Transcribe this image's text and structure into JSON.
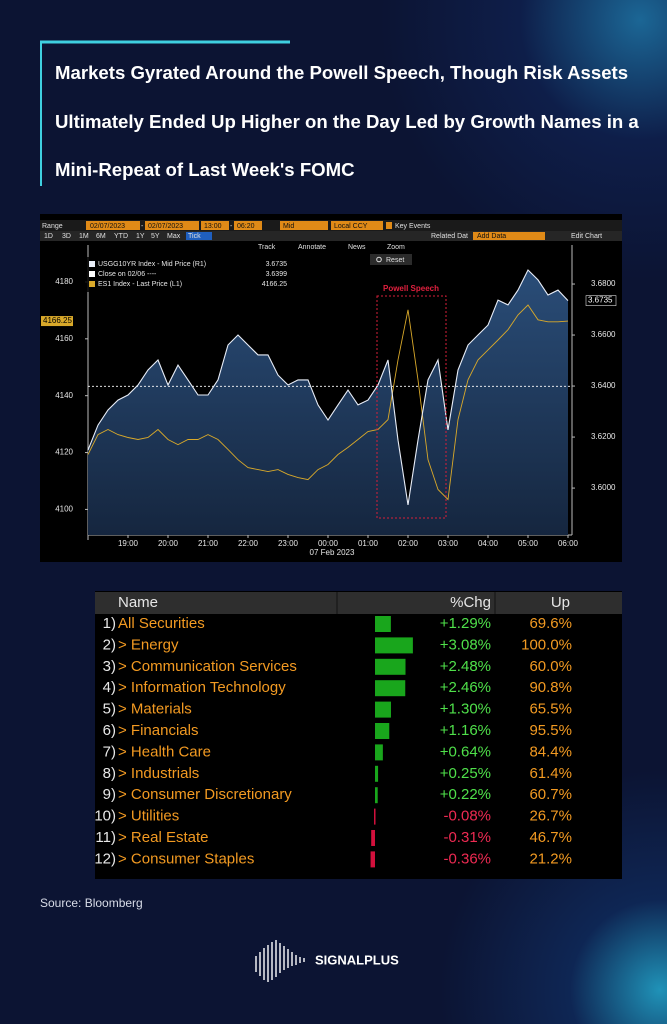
{
  "header": {
    "title": "Markets Gyrated Around the Powell Speech, Though Risk Assets Ultimately Ended Up Higher on the Day Led by Growth Names in a Mini-Repeat of Last Week's FOMC"
  },
  "terminal": {
    "range_label": "Range",
    "start_date": "02/07/2023",
    "dash": "-",
    "end_date": "02/07/2023",
    "start_time": "13:00",
    "end_time": "06:20",
    "price_field": "Mid",
    "currency": "Local CCY",
    "key_events": "Key Events",
    "periods": [
      "1D",
      "3D",
      "1M",
      "6M",
      "YTD",
      "1Y",
      "5Y",
      "Max",
      "Tick"
    ],
    "related_data": "Related Dat",
    "add_data": "Add Data",
    "edit_chart": "Edit Chart",
    "tools": [
      "Track",
      "Annotate",
      "News",
      "Zoom"
    ],
    "reset": "Reset"
  },
  "chart_data": {
    "type": "line",
    "annotation": "Powell Speech",
    "x": [
      "18:00",
      "18:15",
      "18:30",
      "18:45",
      "19:00",
      "19:15",
      "19:30",
      "19:45",
      "20:00",
      "20:15",
      "20:30",
      "20:45",
      "21:00",
      "21:15",
      "21:30",
      "21:45",
      "22:00",
      "22:15",
      "22:30",
      "22:45",
      "23:00",
      "23:15",
      "23:30",
      "23:45",
      "00:00",
      "00:15",
      "00:30",
      "00:45",
      "01:00",
      "01:15",
      "01:30",
      "01:45",
      "02:00",
      "02:15",
      "02:30",
      "02:45",
      "03:00",
      "03:15",
      "03:30",
      "03:45",
      "04:00",
      "04:15",
      "04:30",
      "04:45",
      "05:00",
      "05:15",
      "05:30",
      "05:45",
      "06:00"
    ],
    "xlim": [
      "18:00",
      "06:06"
    ],
    "xticks": [
      "19:00",
      "20:00",
      "21:00",
      "22:00",
      "23:00",
      "00:00",
      "01:00",
      "02:00",
      "03:00",
      "04:00",
      "05:00",
      "06:00"
    ],
    "xlabel": "07 Feb 2023",
    "ylim": [
      4091,
      4193
    ],
    "yticks": [
      4100,
      4120,
      4140,
      4160,
      4180
    ],
    "y2lim": [
      3.5816,
      3.6953
    ],
    "y2ticks": [
      {
        "value": 3.6,
        "label": "3.6000"
      },
      {
        "value": 3.62,
        "label": "3.6200"
      },
      {
        "value": 3.64,
        "label": "3.6400"
      },
      {
        "value": 3.66,
        "label": "3.6600"
      },
      {
        "value": 3.68,
        "label": "3.6800"
      }
    ],
    "series": [
      {
        "name": "USGG10YR Index - Mid Price (R1)",
        "color": "#e9eef8",
        "axis": "y2",
        "last": 3.6735,
        "values": [
          3.6149,
          3.6247,
          3.6306,
          3.6345,
          3.6365,
          3.6404,
          3.6463,
          3.6502,
          3.6404,
          3.6482,
          3.6424,
          3.6365,
          3.6365,
          3.6424,
          3.6561,
          3.66,
          3.6561,
          3.6522,
          3.6522,
          3.6443,
          3.6404,
          3.6424,
          3.6424,
          3.6326,
          3.6267,
          3.6326,
          3.6384,
          3.6326,
          3.6345,
          3.6404,
          3.6502,
          3.6188,
          3.5934,
          3.6188,
          3.6424,
          3.6502,
          3.6228,
          3.6463,
          3.6561,
          3.66,
          3.6639,
          3.6737,
          3.6718,
          3.6776,
          3.6855,
          3.6816,
          3.6757,
          3.6776,
          3.6735
        ]
      },
      {
        "name": "ES1 Index - Last Price (L1)",
        "color": "#d9a92a",
        "last": 4166.25,
        "values": [
          4119.3,
          4126.3,
          4128.1,
          4126.3,
          4125.3,
          4124.6,
          4125.3,
          4128.1,
          4124.6,
          4122.8,
          4124.6,
          4124.6,
          4126.3,
          4124.6,
          4121.1,
          4117.5,
          4114.7,
          4114,
          4113.3,
          4114,
          4112.3,
          4111.2,
          4110.5,
          4114,
          4115.8,
          4119.3,
          4121.8,
          4124.6,
          4127.4,
          4128.1,
          4131.6,
          4152.6,
          4170.2,
          4145.6,
          4117.5,
          4107,
          4103.5,
          4131.6,
          4145.6,
          4152.6,
          4156.1,
          4159.6,
          4163.2,
          4168.4,
          4171.9,
          4166.7,
          4166,
          4166,
          4166.25
        ]
      }
    ],
    "reference": {
      "name": "Close on 02/06 ----",
      "value": 3.6399
    }
  },
  "table": {
    "columns": [
      "Name",
      "%Chg",
      "Up"
    ],
    "rows": [
      {
        "rank": "1)",
        "name": "All Securities",
        "chg": 1.29,
        "chg_label": "+1.29%",
        "up": "69.6%"
      },
      {
        "rank": "2)",
        "name": "> Energy",
        "chg": 3.08,
        "chg_label": "+3.08%",
        "up": "100.0%"
      },
      {
        "rank": "3)",
        "name": "> Communication Services",
        "chg": 2.48,
        "chg_label": "+2.48%",
        "up": "60.0%"
      },
      {
        "rank": "4)",
        "name": "> Information Technology",
        "chg": 2.46,
        "chg_label": "+2.46%",
        "up": "90.8%"
      },
      {
        "rank": "5)",
        "name": "> Materials",
        "chg": 1.3,
        "chg_label": "+1.30%",
        "up": "65.5%"
      },
      {
        "rank": "6)",
        "name": "> Financials",
        "chg": 1.16,
        "chg_label": "+1.16%",
        "up": "95.5%"
      },
      {
        "rank": "7)",
        "name": "> Health Care",
        "chg": 0.64,
        "chg_label": "+0.64%",
        "up": "84.4%"
      },
      {
        "rank": "8)",
        "name": "> Industrials",
        "chg": 0.25,
        "chg_label": "+0.25%",
        "up": "61.4%"
      },
      {
        "rank": "9)",
        "name": "> Consumer Discretionary",
        "chg": 0.22,
        "chg_label": "+0.22%",
        "up": "60.7%"
      },
      {
        "rank": "10)",
        "name": "> Utilities",
        "chg": -0.08,
        "chg_label": "-0.08%",
        "up": "26.7%"
      },
      {
        "rank": "11)",
        "name": "> Real Estate",
        "chg": -0.31,
        "chg_label": "-0.31%",
        "up": "46.7%"
      },
      {
        "rank": "12)",
        "name": "> Consumer Staples",
        "chg": -0.36,
        "chg_label": "-0.36%",
        "up": "21.2%"
      }
    ]
  },
  "footer": {
    "source": "Source:  Bloomberg",
    "brand": "SIGNALPLUS"
  }
}
